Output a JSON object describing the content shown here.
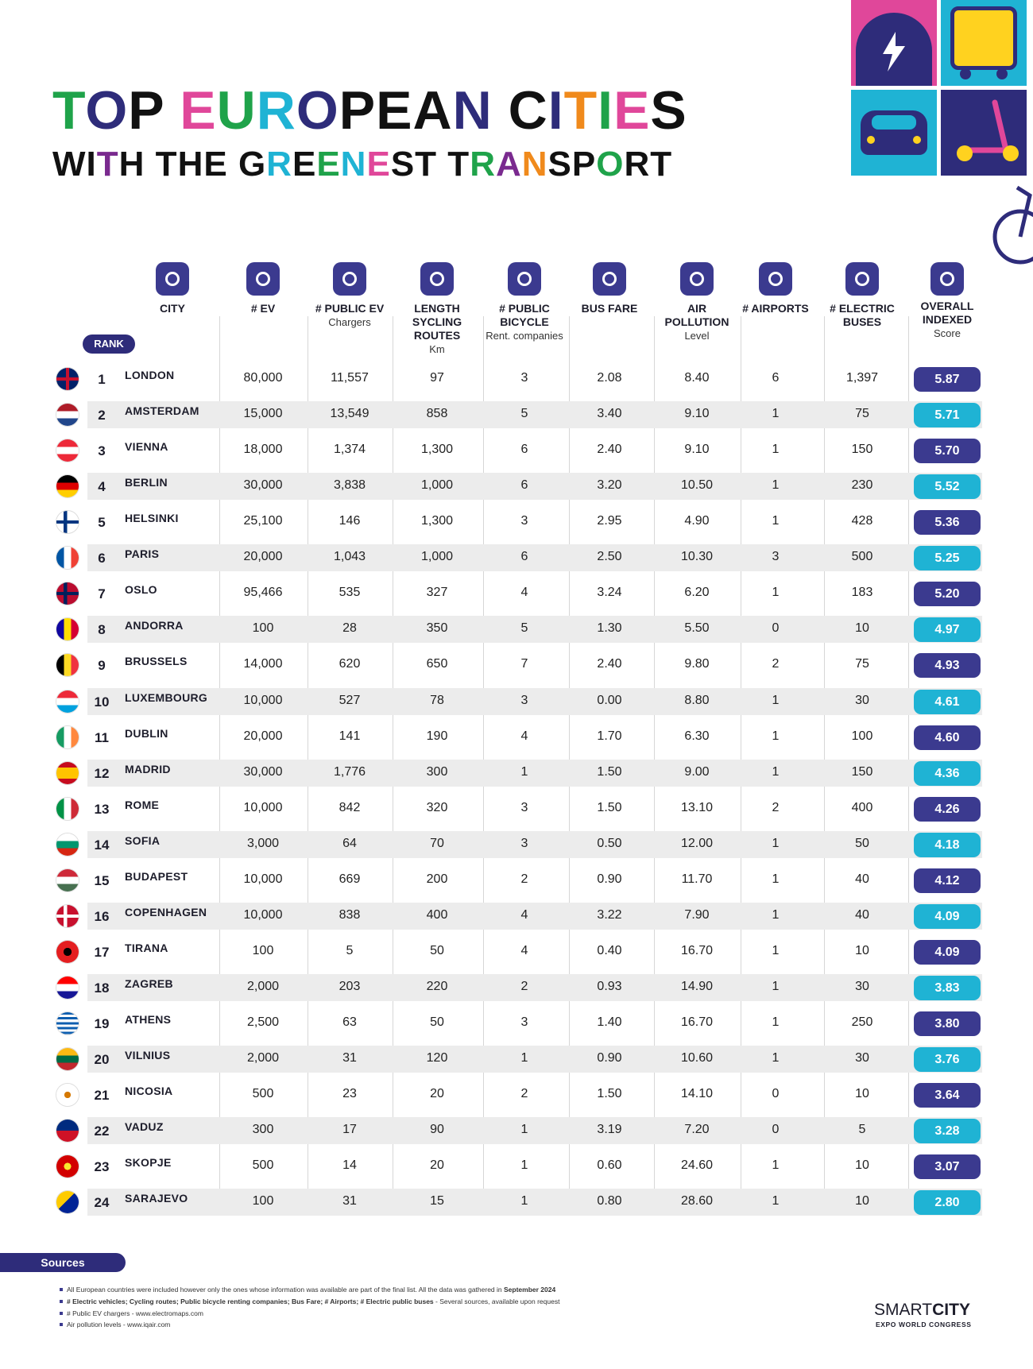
{
  "header": {
    "title_line1": "TOP EUROPEAN CITIES",
    "title_line2": "WITH THE GREENEST TRANSPORT"
  },
  "table": {
    "rank_label": "RANK",
    "columns": [
      {
        "title": "CITY"
      },
      {
        "title": "# EV"
      },
      {
        "title": "# PUBLIC EV",
        "sub": "Chargers"
      },
      {
        "title": "LENGTH SYCLING ROUTES",
        "sub": "Km"
      },
      {
        "title": "# PUBLIC BICYCLE",
        "sub": "Rent. companies"
      },
      {
        "title": "BUS FARE"
      },
      {
        "title": "AIR POLLUTION",
        "sub": "Level"
      },
      {
        "title": "# AIRPORTS"
      },
      {
        "title": "# ELECTRIC BUSES"
      },
      {
        "title": "OVERALL INDEXED",
        "sub": "Score"
      }
    ],
    "rows": [
      [
        "1",
        "LONDON",
        "80,000",
        "11,557",
        "97",
        "3",
        "2.08",
        "8.40",
        "6",
        "1,397",
        "5.87"
      ],
      [
        "2",
        "AMSTERDAM",
        "15,000",
        "13,549",
        "858",
        "5",
        "3.40",
        "9.10",
        "1",
        "75",
        "5.71"
      ],
      [
        "3",
        "VIENNA",
        "18,000",
        "1,374",
        "1,300",
        "6",
        "2.40",
        "9.10",
        "1",
        "150",
        "5.70"
      ],
      [
        "4",
        "BERLIN",
        "30,000",
        "3,838",
        "1,000",
        "6",
        "3.20",
        "10.50",
        "1",
        "230",
        "5.52"
      ],
      [
        "5",
        "HELSINKI",
        "25,100",
        "146",
        "1,300",
        "3",
        "2.95",
        "4.90",
        "1",
        "428",
        "5.36"
      ],
      [
        "6",
        "PARIS",
        "20,000",
        "1,043",
        "1,000",
        "6",
        "2.50",
        "10.30",
        "3",
        "500",
        "5.25"
      ],
      [
        "7",
        "OSLO",
        "95,466",
        "535",
        "327",
        "4",
        "3.24",
        "6.20",
        "1",
        "183",
        "5.20"
      ],
      [
        "8",
        "ANDORRA",
        "100",
        "28",
        "350",
        "5",
        "1.30",
        "5.50",
        "0",
        "10",
        "4.97"
      ],
      [
        "9",
        "BRUSSELS",
        "14,000",
        "620",
        "650",
        "7",
        "2.40",
        "9.80",
        "2",
        "75",
        "4.93"
      ],
      [
        "10",
        "LUXEMBOURG",
        "10,000",
        "527",
        "78",
        "3",
        "0.00",
        "8.80",
        "1",
        "30",
        "4.61"
      ],
      [
        "11",
        "DUBLIN",
        "20,000",
        "141",
        "190",
        "4",
        "1.70",
        "6.30",
        "1",
        "100",
        "4.60"
      ],
      [
        "12",
        "MADRID",
        "30,000",
        "1,776",
        "300",
        "1",
        "1.50",
        "9.00",
        "1",
        "150",
        "4.36"
      ],
      [
        "13",
        "ROME",
        "10,000",
        "842",
        "320",
        "3",
        "1.50",
        "13.10",
        "2",
        "400",
        "4.26"
      ],
      [
        "14",
        "SOFIA",
        "3,000",
        "64",
        "70",
        "3",
        "0.50",
        "12.00",
        "1",
        "50",
        "4.18"
      ],
      [
        "15",
        "BUDAPEST",
        "10,000",
        "669",
        "200",
        "2",
        "0.90",
        "11.70",
        "1",
        "40",
        "4.12"
      ],
      [
        "16",
        "COPENHAGEN",
        "10,000",
        "838",
        "400",
        "4",
        "3.22",
        "7.90",
        "1",
        "40",
        "4.09"
      ],
      [
        "17",
        "TIRANA",
        "100",
        "5",
        "50",
        "4",
        "0.40",
        "16.70",
        "1",
        "10",
        "4.09"
      ],
      [
        "18",
        "ZAGREB",
        "2,000",
        "203",
        "220",
        "2",
        "0.93",
        "14.90",
        "1",
        "30",
        "3.83"
      ],
      [
        "19",
        "ATHENS",
        "2,500",
        "63",
        "50",
        "3",
        "1.40",
        "16.70",
        "1",
        "250",
        "3.80"
      ],
      [
        "20",
        "VILNIUS",
        "2,000",
        "31",
        "120",
        "1",
        "0.90",
        "10.60",
        "1",
        "30",
        "3.76"
      ],
      [
        "21",
        "NICOSIA",
        "500",
        "23",
        "20",
        "2",
        "1.50",
        "14.10",
        "0",
        "10",
        "3.64"
      ],
      [
        "22",
        "VADUZ",
        "300",
        "17",
        "90",
        "1",
        "3.19",
        "7.20",
        "0",
        "5",
        "3.28"
      ],
      [
        "23",
        "SKOPJE",
        "500",
        "14",
        "20",
        "1",
        "0.60",
        "24.60",
        "1",
        "10",
        "3.07"
      ],
      [
        "24",
        "SARAJEVO",
        "100",
        "31",
        "15",
        "1",
        "0.80",
        "28.60",
        "1",
        "10",
        "2.80"
      ]
    ]
  },
  "sources": {
    "label": "Sources",
    "notes": [
      {
        "text": "All European countries were included however only the ones whose  information was available are part of the final list. All the data was gathered in ",
        "bold": "September 2024"
      },
      {
        "bold": "# Electric vehicles; Cycling routes; Public bicycle renting companies; Bus Fare; # Airports; # Electric public buses",
        "text": " - Several sources, available upon request"
      },
      {
        "text": "# Public EV chargers - www.electromaps.com"
      },
      {
        "text": "Air pollution levels - www.iqair.com"
      }
    ]
  },
  "footer": {
    "brand_light": "SMART",
    "brand_bold": "CITY",
    "tagline": "EXPO WORLD CONGRESS"
  }
}
